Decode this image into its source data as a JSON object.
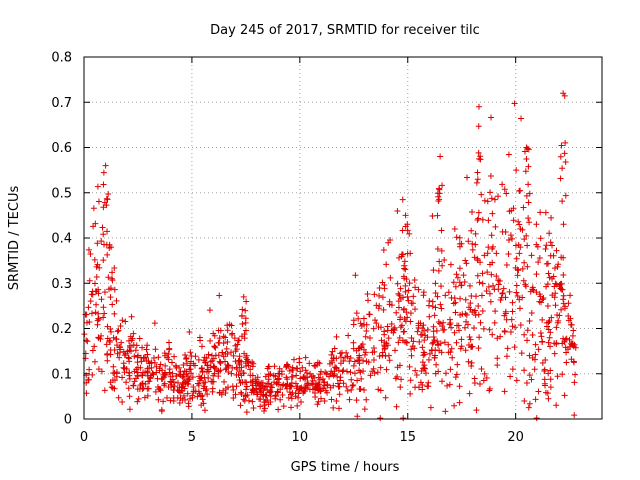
{
  "chart_data": {
    "type": "scatter",
    "title": "Day 245 of 2017, SRMTID for receiver tilc",
    "xlabel": "GPS time / hours",
    "ylabel": "SRMTID / TECUs",
    "xlim": [
      0,
      24
    ],
    "ylim": [
      0,
      0.8
    ],
    "xticks": [
      0,
      5,
      10,
      15,
      20
    ],
    "yticks": [
      0,
      0.1,
      0.2,
      0.3,
      0.4,
      0.5,
      0.6,
      0.7,
      0.8
    ],
    "xtick_labels": [
      "0",
      "5",
      "10",
      "15",
      "20"
    ],
    "ytick_labels": [
      "0",
      "0.1",
      "0.2",
      "0.3",
      "0.4",
      "0.5",
      "0.6",
      "0.7",
      "0.8"
    ],
    "grid": true,
    "marker": "+",
    "color": "#e00000",
    "series": [
      {
        "name": "SRMTID",
        "envelope": [
          {
            "x": 0.0,
            "y": 0.12
          },
          {
            "x": 0.4,
            "y": 0.28
          },
          {
            "x": 0.8,
            "y": 0.26
          },
          {
            "x": 1.5,
            "y": 0.15
          },
          {
            "x": 2.5,
            "y": 0.11
          },
          {
            "x": 4.0,
            "y": 0.09
          },
          {
            "x": 5.5,
            "y": 0.09
          },
          {
            "x": 6.5,
            "y": 0.14
          },
          {
            "x": 7.2,
            "y": 0.11
          },
          {
            "x": 8.0,
            "y": 0.06
          },
          {
            "x": 9.0,
            "y": 0.07
          },
          {
            "x": 10.0,
            "y": 0.09
          },
          {
            "x": 11.0,
            "y": 0.08
          },
          {
            "x": 12.0,
            "y": 0.11
          },
          {
            "x": 13.0,
            "y": 0.14
          },
          {
            "x": 14.0,
            "y": 0.19
          },
          {
            "x": 15.0,
            "y": 0.22
          },
          {
            "x": 15.9,
            "y": 0.14
          },
          {
            "x": 16.3,
            "y": 0.21
          },
          {
            "x": 17.0,
            "y": 0.18
          },
          {
            "x": 18.0,
            "y": 0.28
          },
          {
            "x": 19.0,
            "y": 0.3
          },
          {
            "x": 20.0,
            "y": 0.3
          },
          {
            "x": 21.0,
            "y": 0.23
          },
          {
            "x": 22.0,
            "y": 0.24
          },
          {
            "x": 22.8,
            "y": 0.12
          }
        ],
        "peaks": [
          {
            "x": 1.0,
            "y": 0.56
          },
          {
            "x": 7.4,
            "y": 0.27
          },
          {
            "x": 14.9,
            "y": 0.45
          },
          {
            "x": 16.5,
            "y": 0.58
          },
          {
            "x": 18.3,
            "y": 0.69
          },
          {
            "x": 20.5,
            "y": 0.6
          },
          {
            "x": 22.2,
            "y": 0.72
          }
        ]
      }
    ]
  }
}
